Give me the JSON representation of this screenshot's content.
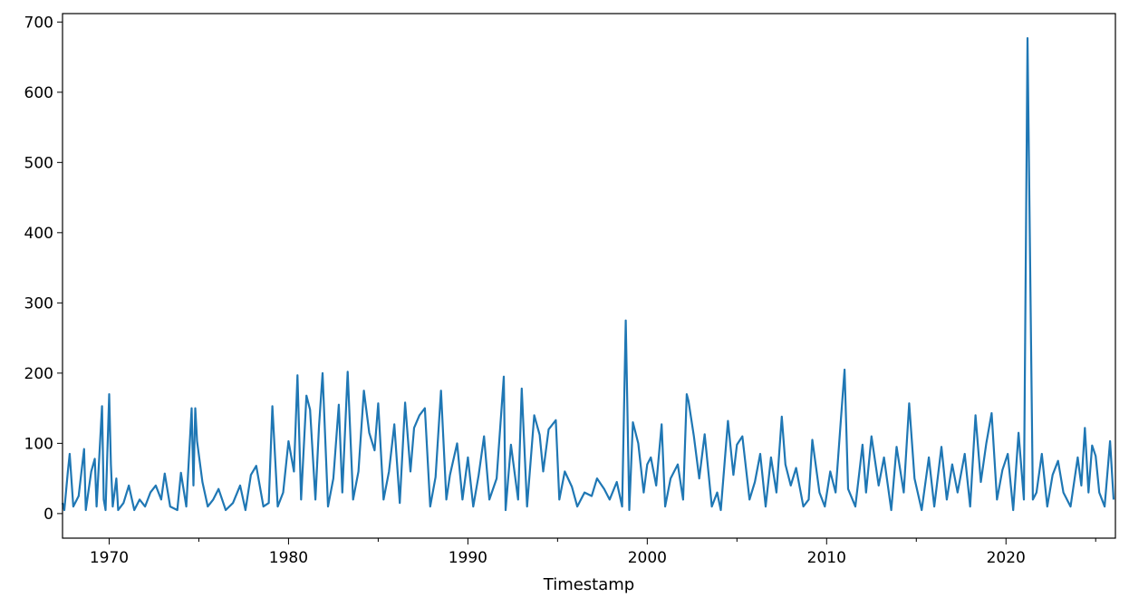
{
  "chart_data": {
    "type": "line",
    "title": "",
    "xlabel": "Timestamp",
    "ylabel": "",
    "xlim": [
      1967.4,
      2026.1
    ],
    "ylim": [
      -35,
      712
    ],
    "y_ticks": [
      0,
      100,
      200,
      300,
      400,
      500,
      600,
      700
    ],
    "x_ticks": [
      1970,
      1980,
      1990,
      2000,
      2010,
      2020
    ],
    "x_tick_labels": [
      "1970",
      "1980",
      "1990",
      "2000",
      "2010",
      "2020"
    ],
    "grid": false,
    "legend": "none",
    "colors": {
      "line": "#1f77b4",
      "axes": "#000000",
      "background": "#ffffff"
    },
    "series": [
      {
        "x": [
          1967.4,
          1967.5,
          1967.7,
          1967.8,
          1968.0,
          1968.3,
          1968.6,
          1968.7,
          1969.0,
          1969.2,
          1969.3,
          1969.6,
          1969.7,
          1969.8,
          1970.0,
          1970.1,
          1970.2,
          1970.4,
          1970.5,
          1970.8,
          1971.1,
          1971.4,
          1971.7,
          1972.0,
          1972.3,
          1972.6,
          1972.9,
          1973.1,
          1973.4,
          1973.8,
          1974.0,
          1974.3,
          1974.6,
          1974.7,
          1974.8,
          1974.9,
          1975.2,
          1975.5,
          1975.8,
          1976.1,
          1976.5,
          1976.9,
          1977.3,
          1977.6,
          1977.9,
          1978.2,
          1978.6,
          1978.9,
          1979.1,
          1979.4,
          1979.7,
          1980.0,
          1980.3,
          1980.5,
          1980.7,
          1981.0,
          1981.2,
          1981.5,
          1981.7,
          1981.9,
          1982.2,
          1982.5,
          1982.8,
          1983.0,
          1983.3,
          1983.6,
          1983.9,
          1984.2,
          1984.5,
          1984.8,
          1985.0,
          1985.3,
          1985.6,
          1985.9,
          1986.2,
          1986.5,
          1986.8,
          1987.0,
          1987.3,
          1987.6,
          1987.9,
          1988.2,
          1988.5,
          1988.8,
          1989.0,
          1989.4,
          1989.7,
          1990.0,
          1990.3,
          1990.6,
          1990.9,
          1991.2,
          1991.6,
          1992.0,
          1992.1,
          1992.4,
          1992.8,
          1993.0,
          1993.3,
          1993.7,
          1994.0,
          1994.2,
          1994.5,
          1994.9,
          1995.1,
          1995.4,
          1995.8,
          1996.1,
          1996.5,
          1996.9,
          1997.2,
          1997.6,
          1997.9,
          1998.3,
          1998.6,
          1998.8,
          1999.0,
          1999.2,
          1999.5,
          1999.8,
          2000.0,
          2000.2,
          2000.5,
          2000.8,
          2001.0,
          2001.3,
          2001.7,
          2002.0,
          2002.2,
          2002.3,
          2002.6,
          2002.9,
          2003.2,
          2003.6,
          2003.9,
          2004.1,
          2004.5,
          2004.8,
          2005.0,
          2005.3,
          2005.7,
          2006.0,
          2006.3,
          2006.6,
          2006.9,
          2007.2,
          2007.5,
          2007.7,
          2008.0,
          2008.3,
          2008.7,
          2009.0,
          2009.2,
          2009.6,
          2009.9,
          2010.2,
          2010.5,
          2010.8,
          2011.0,
          2011.2,
          2011.6,
          2012.0,
          2012.2,
          2012.5,
          2012.9,
          2013.2,
          2013.6,
          2013.9,
          2014.3,
          2014.6,
          2014.9,
          2015.3,
          2015.7,
          2016.0,
          2016.4,
          2016.7,
          2017.0,
          2017.3,
          2017.7,
          2018.0,
          2018.3,
          2018.6,
          2018.9,
          2019.2,
          2019.5,
          2019.8,
          2020.1,
          2020.4,
          2020.7,
          2021.0,
          2021.2,
          2021.5,
          2021.7,
          2022.0,
          2022.3,
          2022.6,
          2022.9,
          2023.2,
          2023.6,
          2024.0,
          2024.2,
          2024.4,
          2024.6,
          2024.8,
          2025.0,
          2025.2,
          2025.5,
          2025.8,
          2026.0
        ],
        "y": [
          15,
          5,
          60,
          85,
          10,
          25,
          92,
          5,
          60,
          78,
          10,
          153,
          20,
          5,
          170,
          70,
          10,
          50,
          5,
          15,
          40,
          5,
          20,
          10,
          30,
          40,
          20,
          57,
          10,
          5,
          58,
          10,
          150,
          40,
          150,
          103,
          45,
          10,
          20,
          35,
          5,
          15,
          40,
          5,
          55,
          68,
          10,
          15,
          153,
          10,
          30,
          103,
          60,
          197,
          20,
          168,
          148,
          20,
          125,
          200,
          10,
          50,
          155,
          30,
          202,
          20,
          60,
          175,
          115,
          90,
          157,
          20,
          60,
          127,
          15,
          158,
          60,
          122,
          140,
          150,
          10,
          52,
          175,
          20,
          55,
          100,
          20,
          80,
          10,
          55,
          110,
          20,
          50,
          195,
          5,
          98,
          20,
          178,
          10,
          140,
          112,
          60,
          120,
          133,
          20,
          60,
          38,
          10,
          30,
          25,
          50,
          35,
          20,
          45,
          10,
          275,
          5,
          130,
          100,
          30,
          70,
          80,
          40,
          127,
          10,
          50,
          70,
          20,
          170,
          160,
          110,
          50,
          113,
          10,
          30,
          5,
          132,
          55,
          98,
          110,
          20,
          45,
          85,
          10,
          80,
          30,
          138,
          70,
          40,
          65,
          10,
          20,
          105,
          30,
          10,
          60,
          30,
          135,
          205,
          35,
          10,
          98,
          30,
          110,
          40,
          80,
          5,
          95,
          30,
          157,
          50,
          5,
          80,
          10,
          95,
          20,
          70,
          30,
          85,
          10,
          140,
          45,
          100,
          143,
          20,
          62,
          85,
          5,
          115,
          20,
          677,
          20,
          30,
          85,
          10,
          55,
          75,
          30,
          10,
          80,
          40,
          122,
          30,
          97,
          82,
          30,
          10,
          103,
          20
        ]
      }
    ]
  }
}
